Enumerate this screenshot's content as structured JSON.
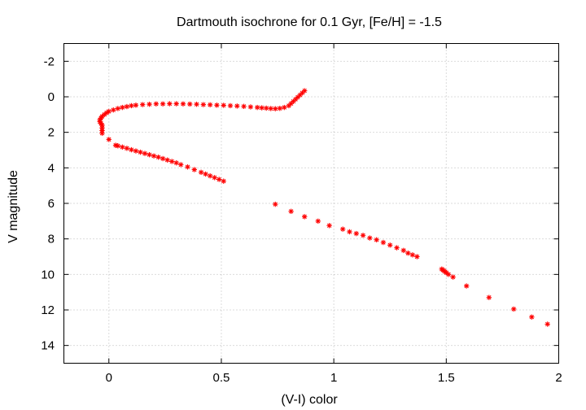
{
  "chart_data": {
    "type": "scatter",
    "title": "Dartmouth isochrone for 0.1 Gyr, [Fe/H] = -1.5",
    "xlabel": "(V-I) color",
    "ylabel": "V magnitude",
    "xlim": [
      -0.2,
      2.0
    ],
    "ylim": [
      15,
      -3
    ],
    "y_inverted": true,
    "grid": true,
    "legend": "none",
    "marker": "asterisk",
    "color": "#ff0000",
    "xticks": [
      {
        "value": 0,
        "label": "0"
      },
      {
        "value": 0.5,
        "label": "0.5"
      },
      {
        "value": 1,
        "label": "1"
      },
      {
        "value": 1.5,
        "label": "1.5"
      },
      {
        "value": 2,
        "label": "2"
      }
    ],
    "yticks": [
      {
        "value": -2,
        "label": "-2"
      },
      {
        "value": 0,
        "label": "0"
      },
      {
        "value": 2,
        "label": "2"
      },
      {
        "value": 4,
        "label": "4"
      },
      {
        "value": 6,
        "label": "6"
      },
      {
        "value": 8,
        "label": "8"
      },
      {
        "value": 10,
        "label": "10"
      },
      {
        "value": 12,
        "label": "12"
      },
      {
        "value": 14,
        "label": "14"
      }
    ],
    "series": [
      {
        "points": [
          [
            1.95,
            12.8
          ],
          [
            1.88,
            12.4
          ],
          [
            1.8,
            11.95
          ],
          [
            1.69,
            11.3
          ],
          [
            1.59,
            10.65
          ],
          [
            1.53,
            10.15
          ],
          [
            1.51,
            10.0
          ],
          [
            1.5,
            9.9
          ],
          [
            1.495,
            9.85
          ],
          [
            1.49,
            9.8
          ],
          [
            1.485,
            9.75
          ],
          [
            1.48,
            9.7
          ],
          [
            1.37,
            9.0
          ],
          [
            1.35,
            8.9
          ],
          [
            1.33,
            8.8
          ],
          [
            1.31,
            8.65
          ],
          [
            1.28,
            8.5
          ],
          [
            1.25,
            8.35
          ],
          [
            1.22,
            8.2
          ],
          [
            1.19,
            8.05
          ],
          [
            1.16,
            7.95
          ],
          [
            1.13,
            7.8
          ],
          [
            1.1,
            7.7
          ],
          [
            1.07,
            7.6
          ],
          [
            1.04,
            7.45
          ],
          [
            0.98,
            7.25
          ],
          [
            0.93,
            7.0
          ],
          [
            0.87,
            6.75
          ],
          [
            0.81,
            6.45
          ],
          [
            0.74,
            6.05
          ],
          [
            0.51,
            4.75
          ],
          [
            0.49,
            4.65
          ],
          [
            0.47,
            4.55
          ],
          [
            0.45,
            4.45
          ],
          [
            0.43,
            4.35
          ],
          [
            0.41,
            4.25
          ],
          [
            0.38,
            4.1
          ],
          [
            0.35,
            3.95
          ],
          [
            0.32,
            3.82
          ],
          [
            0.3,
            3.72
          ],
          [
            0.28,
            3.64
          ],
          [
            0.26,
            3.56
          ],
          [
            0.24,
            3.48
          ],
          [
            0.22,
            3.4
          ],
          [
            0.2,
            3.33
          ],
          [
            0.18,
            3.26
          ],
          [
            0.16,
            3.19
          ],
          [
            0.14,
            3.12
          ],
          [
            0.12,
            3.05
          ],
          [
            0.1,
            2.98
          ],
          [
            0.08,
            2.9
          ],
          [
            0.06,
            2.83
          ],
          [
            0.04,
            2.76
          ],
          [
            0.03,
            2.73
          ],
          [
            0.0,
            2.4
          ],
          [
            -0.03,
            2.05
          ],
          [
            -0.03,
            1.9
          ],
          [
            -0.03,
            1.75
          ],
          [
            -0.03,
            1.6
          ],
          [
            -0.035,
            1.5
          ],
          [
            -0.04,
            1.4
          ],
          [
            -0.04,
            1.3
          ],
          [
            -0.035,
            1.2
          ],
          [
            -0.03,
            1.1
          ],
          [
            -0.02,
            1.0
          ],
          [
            -0.01,
            0.9
          ],
          [
            0.0,
            0.82
          ],
          [
            0.02,
            0.74
          ],
          [
            0.04,
            0.66
          ],
          [
            0.06,
            0.6
          ],
          [
            0.08,
            0.55
          ],
          [
            0.1,
            0.5
          ],
          [
            0.12,
            0.47
          ],
          [
            0.15,
            0.44
          ],
          [
            0.18,
            0.42
          ],
          [
            0.21,
            0.4
          ],
          [
            0.24,
            0.4
          ],
          [
            0.27,
            0.39
          ],
          [
            0.3,
            0.39
          ],
          [
            0.33,
            0.4
          ],
          [
            0.36,
            0.41
          ],
          [
            0.39,
            0.42
          ],
          [
            0.42,
            0.44
          ],
          [
            0.45,
            0.45
          ],
          [
            0.48,
            0.47
          ],
          [
            0.51,
            0.48
          ],
          [
            0.54,
            0.5
          ],
          [
            0.57,
            0.52
          ],
          [
            0.6,
            0.54
          ],
          [
            0.63,
            0.57
          ],
          [
            0.66,
            0.6
          ],
          [
            0.68,
            0.62
          ],
          [
            0.7,
            0.64
          ],
          [
            0.72,
            0.66
          ],
          [
            0.74,
            0.67
          ],
          [
            0.76,
            0.65
          ],
          [
            0.78,
            0.6
          ],
          [
            0.8,
            0.5
          ],
          [
            0.81,
            0.38
          ],
          [
            0.82,
            0.26
          ],
          [
            0.83,
            0.14
          ],
          [
            0.84,
            0.02
          ],
          [
            0.85,
            -0.1
          ],
          [
            0.86,
            -0.22
          ],
          [
            0.87,
            -0.34
          ]
        ]
      }
    ]
  }
}
